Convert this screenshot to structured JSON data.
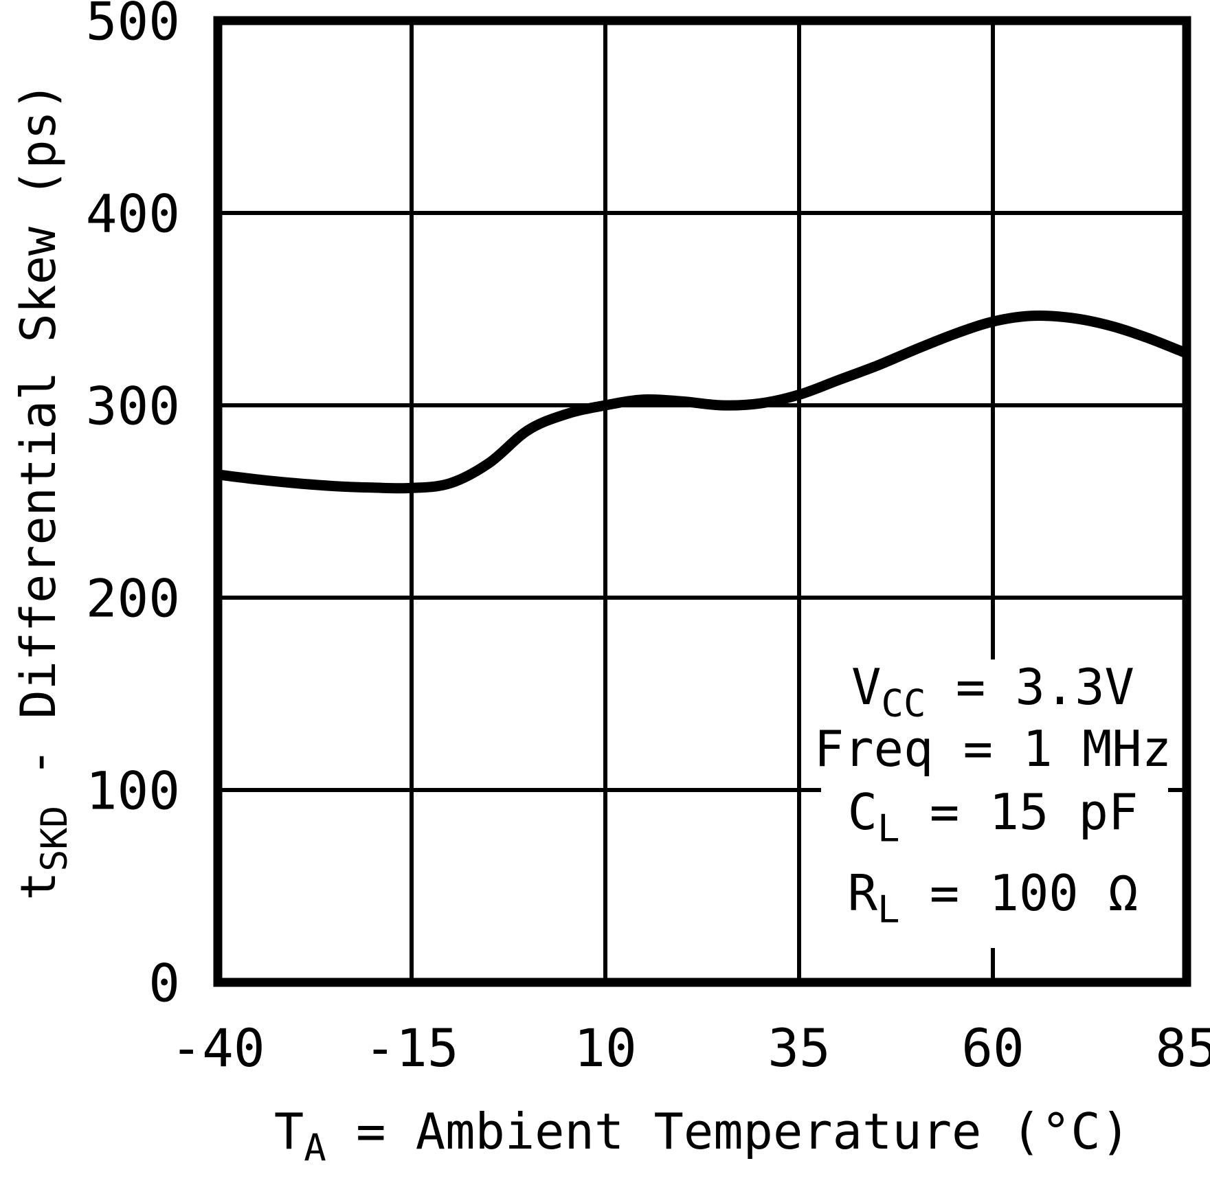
{
  "figure": {
    "background_color": "#ffffff",
    "ink_color": "#000000"
  },
  "chart_data": {
    "type": "line",
    "title": "",
    "xlabel": {
      "pre": "T",
      "sub": "A",
      "post": " = Ambient Temperature (°C)"
    },
    "ylabel": {
      "pre": "t",
      "sub": "SKD",
      "post": " - Differential Skew (ps)"
    },
    "xlim": [
      -40,
      85
    ],
    "ylim": [
      0,
      500
    ],
    "x_ticks": [
      -40,
      -15,
      10,
      35,
      60,
      85
    ],
    "y_ticks": [
      0,
      100,
      200,
      300,
      400,
      500
    ],
    "x_tick_labels": [
      "-40",
      "-15",
      "10",
      "35",
      "60",
      "85"
    ],
    "y_tick_labels": [
      "0",
      "100",
      "200",
      "300",
      "400",
      "500"
    ],
    "grid": true,
    "legend_position": "none",
    "series": [
      {
        "name": "tSKD differential skew",
        "x": [
          -40,
          -35,
          -30,
          -25,
          -20,
          -15,
          -10,
          -5,
          0,
          5,
          10,
          15,
          20,
          25,
          30,
          35,
          40,
          45,
          50,
          55,
          60,
          65,
          70,
          75,
          80,
          85
        ],
        "y": [
          264,
          261.5,
          259.5,
          258,
          257.2,
          257,
          259.5,
          270,
          287,
          295.5,
          300,
          303,
          302,
          300,
          301,
          305.5,
          313,
          320.5,
          329,
          337,
          343.5,
          346.5,
          345.5,
          341.5,
          335,
          327
        ]
      }
    ],
    "annotation": {
      "lines": [
        {
          "pre": "V",
          "sub": "CC",
          "post": " = 3.3V"
        },
        {
          "pre": "Freq",
          "sub": "",
          "post": " = 1 MHz"
        },
        {
          "pre": "C",
          "sub": "L",
          "post": " = 15 pF"
        },
        {
          "pre": "R",
          "sub": "L",
          "post": " = 100 Ω"
        }
      ]
    }
  }
}
